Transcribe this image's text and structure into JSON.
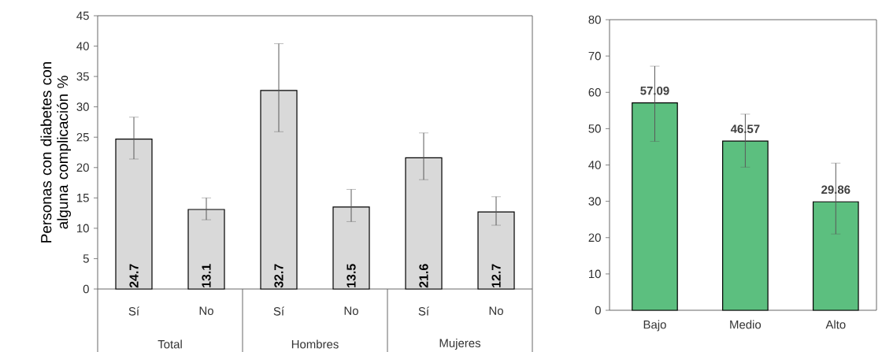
{
  "chart_data": [
    {
      "type": "bar",
      "ylabel": "Personas con diabetes  con alguna complicación %",
      "categories": [
        "Sí",
        "No",
        "Sí",
        "No",
        "Sí",
        "No"
      ],
      "annotations": [
        "Total",
        "Hombres",
        "Mujeres"
      ],
      "values": [
        24.7,
        13.1,
        32.7,
        13.5,
        21.6,
        12.7
      ],
      "errors": [
        [
          21.4,
          28.3
        ],
        [
          11.4,
          15.0
        ],
        [
          25.9,
          40.4
        ],
        [
          11.1,
          16.4
        ],
        [
          18.0,
          25.7
        ],
        [
          10.5,
          15.2
        ]
      ],
      "color": "#d9d9d9",
      "data_labels": true,
      "grid": false,
      "ylim": [
        0,
        45
      ],
      "yticks": [
        0,
        5,
        10,
        15,
        20,
        25,
        30,
        35,
        40,
        45
      ]
    },
    {
      "type": "bar",
      "categories": [
        "Bajo",
        "Medio",
        "Alto"
      ],
      "values": [
        57.09,
        46.57,
        29.86
      ],
      "errors": [
        [
          46.5,
          67.2
        ],
        [
          39.4,
          54.0
        ],
        [
          21.0,
          40.5
        ]
      ],
      "color": "#5cbf7f",
      "data_labels": true,
      "grid": false,
      "ylim": [
        0,
        80
      ],
      "yticks": [
        0,
        10,
        20,
        30,
        40,
        50,
        60,
        70,
        80
      ]
    }
  ]
}
